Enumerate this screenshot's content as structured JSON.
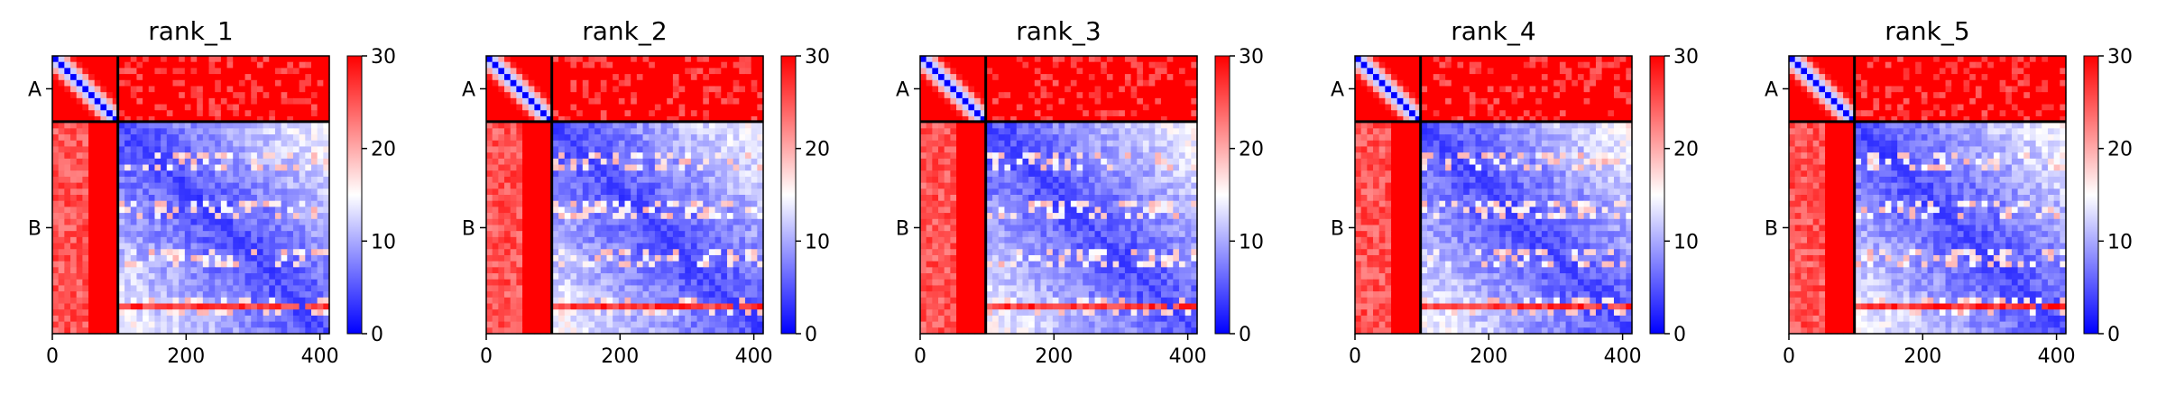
{
  "figure": {
    "description_free": true
  },
  "chart_data": [
    {
      "type": "heatmap",
      "title": "rank_1",
      "x_ticks": [
        0,
        200,
        400
      ],
      "y_ticks": [
        "A",
        "B"
      ],
      "chain_boundary": 98,
      "length": 414,
      "colorbar": {
        "ticks": [
          0,
          10,
          20,
          30
        ],
        "range": [
          0,
          30
        ],
        "colors": [
          "#0000ff",
          "#ffffff",
          "#ff0000"
        ]
      },
      "pae_matrix_summary": {
        "diagonal": 0,
        "intra_chain_A": 28,
        "inter_chain": 30,
        "intra_chain_B": 9
      }
    },
    {
      "type": "heatmap",
      "title": "rank_2",
      "x_ticks": [
        0,
        200,
        400
      ],
      "y_ticks": [
        "A",
        "B"
      ],
      "chain_boundary": 98,
      "length": 414,
      "colorbar": {
        "ticks": [
          0,
          10,
          20,
          30
        ],
        "range": [
          0,
          30
        ],
        "colors": [
          "#0000ff",
          "#ffffff",
          "#ff0000"
        ]
      },
      "pae_matrix_summary": {
        "diagonal": 0,
        "intra_chain_A": 28,
        "inter_chain": 30,
        "intra_chain_B": 9
      }
    },
    {
      "type": "heatmap",
      "title": "rank_3",
      "x_ticks": [
        0,
        200,
        400
      ],
      "y_ticks": [
        "A",
        "B"
      ],
      "chain_boundary": 98,
      "length": 414,
      "colorbar": {
        "ticks": [
          0,
          10,
          20,
          30
        ],
        "range": [
          0,
          30
        ],
        "colors": [
          "#0000ff",
          "#ffffff",
          "#ff0000"
        ]
      },
      "pae_matrix_summary": {
        "diagonal": 0,
        "intra_chain_A": 28,
        "inter_chain": 30,
        "intra_chain_B": 9
      }
    },
    {
      "type": "heatmap",
      "title": "rank_4",
      "x_ticks": [
        0,
        200,
        400
      ],
      "y_ticks": [
        "A",
        "B"
      ],
      "chain_boundary": 98,
      "length": 414,
      "colorbar": {
        "ticks": [
          0,
          10,
          20,
          30
        ],
        "range": [
          0,
          30
        ],
        "colors": [
          "#0000ff",
          "#ffffff",
          "#ff0000"
        ]
      },
      "pae_matrix_summary": {
        "diagonal": 0,
        "intra_chain_A": 28,
        "inter_chain": 30,
        "intra_chain_B": 9
      }
    },
    {
      "type": "heatmap",
      "title": "rank_5",
      "x_ticks": [
        0,
        200,
        400
      ],
      "y_ticks": [
        "A",
        "B"
      ],
      "chain_boundary": 98,
      "length": 414,
      "colorbar": {
        "ticks": [
          0,
          10,
          20,
          30
        ],
        "range": [
          0,
          30
        ],
        "colors": [
          "#0000ff",
          "#ffffff",
          "#ff0000"
        ]
      },
      "pae_matrix_summary": {
        "diagonal": 0,
        "intra_chain_A": 28,
        "inter_chain": 30,
        "intra_chain_B": 9
      }
    }
  ]
}
